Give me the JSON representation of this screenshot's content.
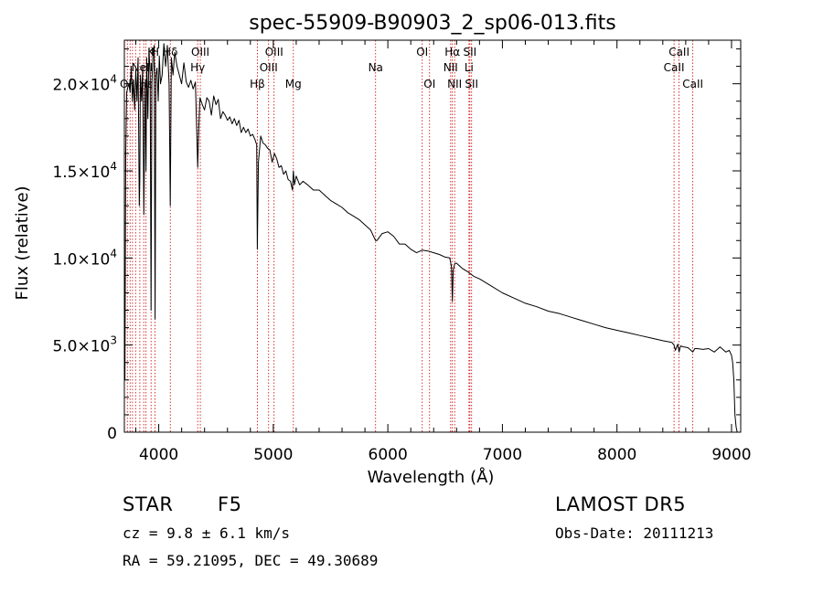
{
  "chart_data": {
    "type": "line",
    "title": "spec-55909-B90903_2_sp06-013.fits",
    "xlabel": "Wavelength (Å)",
    "ylabel": "Flux (relative)",
    "xlim": [
      3700,
      9080
    ],
    "ylim": [
      0,
      22500
    ],
    "grid": false,
    "x_ticks": [
      {
        "value": 4000,
        "label": "4000"
      },
      {
        "value": 5000,
        "label": "5000"
      },
      {
        "value": 6000,
        "label": "6000"
      },
      {
        "value": 7000,
        "label": "7000"
      },
      {
        "value": 8000,
        "label": "8000"
      },
      {
        "value": 9000,
        "label": "9000"
      }
    ],
    "y_ticks": [
      {
        "value": 0,
        "mant": "0",
        "exp": ""
      },
      {
        "value": 5000,
        "mant": "5.0×10",
        "exp": "3"
      },
      {
        "value": 10000,
        "mant": "1.0×10",
        "exp": "4"
      },
      {
        "value": 15000,
        "mant": "1.5×10",
        "exp": "4"
      },
      {
        "value": 20000,
        "mant": "2.0×10",
        "exp": "4"
      }
    ],
    "series": [
      {
        "color": "#000000",
        "x": [
          3700,
          3705,
          3712,
          3720,
          3730,
          3740,
          3750,
          3760,
          3770,
          3780,
          3790,
          3800,
          3810,
          3820,
          3830,
          3835,
          3840,
          3850,
          3860,
          3870,
          3880,
          3889,
          3895,
          3905,
          3915,
          3925,
          3933,
          3940,
          3950,
          3960,
          3968,
          3975,
          3985,
          3995,
          4005,
          4015,
          4030,
          4045,
          4060,
          4075,
          4090,
          4101,
          4110,
          4125,
          4140,
          4160,
          4180,
          4200,
          4220,
          4240,
          4260,
          4280,
          4300,
          4320,
          4340,
          4350,
          4360,
          4380,
          4400,
          4420,
          4440,
          4460,
          4480,
          4500,
          4520,
          4540,
          4560,
          4580,
          4600,
          4620,
          4640,
          4660,
          4680,
          4700,
          4720,
          4740,
          4760,
          4780,
          4800,
          4820,
          4840,
          4855,
          4861,
          4870,
          4890,
          4910,
          4930,
          4950,
          4970,
          4990,
          5010,
          5030,
          5050,
          5070,
          5090,
          5110,
          5130,
          5150,
          5167,
          5175,
          5185,
          5200,
          5230,
          5260,
          5300,
          5350,
          5400,
          5450,
          5500,
          5550,
          5600,
          5650,
          5700,
          5750,
          5800,
          5850,
          5893,
          5905,
          5950,
          6000,
          6050,
          6100,
          6150,
          6200,
          6250,
          6300,
          6350,
          6400,
          6450,
          6500,
          6540,
          6555,
          6563,
          6570,
          6585,
          6600,
          6650,
          6700,
          6750,
          6800,
          6900,
          7000,
          7100,
          7200,
          7300,
          7400,
          7500,
          7600,
          7700,
          7800,
          7900,
          8000,
          8100,
          8200,
          8300,
          8400,
          8480,
          8498,
          8510,
          8530,
          8542,
          8555,
          8580,
          8620,
          8662,
          8680,
          8700,
          8750,
          8800,
          8850,
          8900,
          8950,
          8980,
          9000,
          9010,
          9020,
          9030,
          9040,
          9050
        ],
        "y": [
          7000,
          3000,
          16000,
          19500,
          19800,
          20000,
          19500,
          21000,
          19000,
          20200,
          18500,
          20800,
          19000,
          21500,
          13000,
          14500,
          20500,
          19000,
          21000,
          12500,
          20000,
          15000,
          21500,
          18000,
          22000,
          20500,
          7000,
          20000,
          21700,
          22200,
          6500,
          20500,
          20900,
          19000,
          21600,
          20000,
          20500,
          22300,
          21000,
          22200,
          20000,
          13000,
          21500,
          20500,
          21800,
          21000,
          20500,
          20000,
          21200,
          20100,
          19800,
          20200,
          19700,
          20100,
          15200,
          17500,
          19200,
          18800,
          18500,
          19200,
          19000,
          18200,
          19300,
          18800,
          19100,
          18000,
          18400,
          18200,
          17900,
          18100,
          17700,
          18000,
          17600,
          17900,
          17200,
          17500,
          17200,
          17400,
          17000,
          17100,
          16800,
          16500,
          10500,
          15500,
          17000,
          16600,
          16500,
          16300,
          16200,
          15500,
          16000,
          15700,
          15200,
          15300,
          14800,
          15000,
          14500,
          14400,
          13900,
          15000,
          14200,
          14700,
          14200,
          14400,
          14200,
          13900,
          13900,
          13600,
          13300,
          13100,
          12900,
          12600,
          12400,
          12200,
          11900,
          11600,
          11000,
          11000,
          11400,
          11500,
          11250,
          10800,
          10800,
          10500,
          10300,
          10450,
          10400,
          10300,
          10200,
          10050,
          10000,
          9500,
          7500,
          9300,
          9700,
          9700,
          9400,
          9200,
          8950,
          8800,
          8400,
          8000,
          7700,
          7400,
          7200,
          6950,
          6800,
          6600,
          6400,
          6200,
          6000,
          5850,
          5700,
          5550,
          5400,
          5250,
          5150,
          5000,
          4700,
          5050,
          4600,
          4950,
          4900,
          4850,
          4600,
          4800,
          4800,
          4750,
          4800,
          4600,
          4900,
          4600,
          4700,
          4400,
          4000,
          3000,
          1000,
          300,
          0
        ]
      }
    ],
    "lines": [
      {
        "wave": 3726,
        "labels": [
          {
            "text": "OII",
            "row": 2
          }
        ]
      },
      {
        "wave": 3750,
        "labels": []
      },
      {
        "wave": 3771,
        "labels": []
      },
      {
        "wave": 3798,
        "labels": []
      },
      {
        "wave": 3835,
        "labels": []
      },
      {
        "wave": 3869,
        "labels": [
          {
            "text": "NeIII",
            "row": 1
          }
        ]
      },
      {
        "wave": 3889,
        "labels": [
          {
            "text": "Hε",
            "row": 2
          }
        ]
      },
      {
        "wave": 3933,
        "labels": [
          {
            "text": "K",
            "row": 0
          }
        ]
      },
      {
        "wave": 3968,
        "labels": [
          {
            "text": "H",
            "row": 0
          }
        ]
      },
      {
        "wave": 4101,
        "labels": [
          {
            "text": "Hδ",
            "row": 0
          }
        ]
      },
      {
        "wave": 4340,
        "labels": [
          {
            "text": "Hγ",
            "row": 1
          }
        ]
      },
      {
        "wave": 4363,
        "labels": [
          {
            "text": "OIII",
            "row": 0
          }
        ]
      },
      {
        "wave": 4861,
        "labels": [
          {
            "text": "Hβ",
            "row": 2
          }
        ]
      },
      {
        "wave": 4959,
        "labels": [
          {
            "text": "OIII",
            "row": 1
          }
        ]
      },
      {
        "wave": 5007,
        "labels": [
          {
            "text": "OIII",
            "row": 0
          }
        ]
      },
      {
        "wave": 5175,
        "labels": [
          {
            "text": "Mg",
            "row": 2
          }
        ]
      },
      {
        "wave": 5893,
        "labels": [
          {
            "text": "Na",
            "row": 1
          }
        ]
      },
      {
        "wave": 6300,
        "labels": [
          {
            "text": "OI",
            "row": 0
          }
        ]
      },
      {
        "wave": 6364,
        "labels": [
          {
            "text": "OI",
            "row": 2
          }
        ]
      },
      {
        "wave": 6548,
        "labels": [
          {
            "text": "NII",
            "row": 1
          }
        ]
      },
      {
        "wave": 6563,
        "labels": [
          {
            "text": "Hα",
            "row": 0
          }
        ]
      },
      {
        "wave": 6583,
        "labels": [
          {
            "text": "NII",
            "row": 2
          }
        ]
      },
      {
        "wave": 6708,
        "labels": [
          {
            "text": "Li",
            "row": 1
          }
        ]
      },
      {
        "wave": 6716,
        "labels": [
          {
            "text": "SII",
            "row": 0
          }
        ]
      },
      {
        "wave": 6731,
        "labels": [
          {
            "text": "SII",
            "row": 2
          }
        ]
      },
      {
        "wave": 8498,
        "labels": [
          {
            "text": "CaII",
            "row": 1
          }
        ]
      },
      {
        "wave": 8542,
        "labels": [
          {
            "text": "CaII",
            "row": 0
          }
        ]
      },
      {
        "wave": 8662,
        "labels": [
          {
            "text": "CaII",
            "row": 2
          }
        ]
      }
    ]
  },
  "info": {
    "class_label": "STAR",
    "subclass": "F5",
    "survey": "LAMOST DR5",
    "cz": "cz = 9.8 ± 6.1 km/s",
    "obs_date": "Obs-Date: 20111213",
    "coords": "RA =  59.21095, DEC =  49.30689"
  },
  "colors": {
    "spectrum": "#000000",
    "line_markers": "#cc0000",
    "axes": "#000000"
  }
}
